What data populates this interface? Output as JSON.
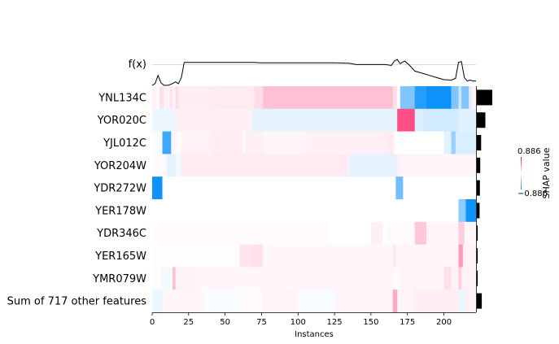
{
  "chart_data": {
    "type": "heatmap",
    "fx_label": "f(x)",
    "xlabel": "Instances",
    "x_range": [
      0,
      222
    ],
    "x_ticks": [
      0,
      25,
      50,
      75,
      100,
      125,
      150,
      175,
      200
    ],
    "x_tick_labels": [
      "0",
      "25",
      "50",
      "75",
      "100",
      "125",
      "150",
      "175",
      "200"
    ],
    "colorbar": {
      "label": "SHAP value",
      "max_label": "0.886",
      "min_label": "−0.886",
      "low_color": "#008bfb",
      "mid_color": "#ffffff",
      "high_color": "#ff0051"
    },
    "features": [
      "YNL134C",
      "YOR020C",
      "YJL012C",
      "YOR204W",
      "YDR272W",
      "YER178W",
      "YDR346C",
      "YER165W",
      "YMR079W",
      "Sum of 717 other features"
    ],
    "importance": [
      1.0,
      0.55,
      0.28,
      0.22,
      0.2,
      0.18,
      0.06,
      0.06,
      0.06,
      0.32
    ],
    "fx": [
      [
        0,
        0.72
      ],
      [
        2,
        0.76
      ],
      [
        4,
        0.95
      ],
      [
        6,
        0.78
      ],
      [
        8,
        0.72
      ],
      [
        11,
        0.72
      ],
      [
        14,
        0.76
      ],
      [
        16,
        0.8
      ],
      [
        18,
        0.76
      ],
      [
        20,
        0.9
      ],
      [
        22,
        1.25
      ],
      [
        30,
        1.25
      ],
      [
        40,
        1.25
      ],
      [
        50,
        1.25
      ],
      [
        60,
        1.25
      ],
      [
        70,
        1.25
      ],
      [
        74,
        1.24
      ],
      [
        80,
        1.24
      ],
      [
        100,
        1.24
      ],
      [
        125,
        1.24
      ],
      [
        135,
        1.23
      ],
      [
        140,
        1.2
      ],
      [
        150,
        1.2
      ],
      [
        160,
        1.2
      ],
      [
        164,
        1.18
      ],
      [
        166,
        1.28
      ],
      [
        168,
        1.32
      ],
      [
        170,
        1.22
      ],
      [
        173,
        1.28
      ],
      [
        176,
        1.2
      ],
      [
        180,
        1.05
      ],
      [
        185,
        1.0
      ],
      [
        190,
        0.95
      ],
      [
        195,
        0.9
      ],
      [
        200,
        0.85
      ],
      [
        205,
        0.84
      ],
      [
        208,
        0.88
      ],
      [
        210,
        1.25
      ],
      [
        212,
        1.27
      ],
      [
        214,
        0.9
      ],
      [
        216,
        0.82
      ],
      [
        218,
        0.84
      ],
      [
        220,
        0.82
      ],
      [
        222,
        0.82
      ]
    ],
    "rows": [
      [
        [
          0,
          3,
          0.05
        ],
        [
          3,
          5,
          -0.02
        ],
        [
          5,
          8,
          0.12
        ],
        [
          8,
          12,
          0.05
        ],
        [
          12,
          14,
          0.1
        ],
        [
          14,
          16,
          0.04
        ],
        [
          16,
          18,
          0.15
        ],
        [
          18,
          40,
          0.07
        ],
        [
          40,
          70,
          0.08
        ],
        [
          70,
          76,
          0.14
        ],
        [
          76,
          165,
          0.25
        ],
        [
          165,
          168,
          0.12
        ],
        [
          168,
          170,
          0
        ],
        [
          170,
          180,
          -0.5
        ],
        [
          180,
          188,
          -0.85
        ],
        [
          188,
          205,
          -0.95
        ],
        [
          205,
          210,
          -0.5
        ],
        [
          210,
          212,
          -0.2
        ],
        [
          212,
          217,
          -0.5
        ],
        [
          217,
          219,
          -0.15
        ],
        [
          219,
          222,
          0.05
        ]
      ],
      [
        [
          0,
          16,
          -0.08
        ],
        [
          16,
          30,
          0.06
        ],
        [
          30,
          68,
          0.06
        ],
        [
          68,
          168,
          -0.1
        ],
        [
          168,
          180,
          0.7
        ],
        [
          180,
          186,
          -0.15
        ],
        [
          186,
          210,
          -0.18
        ],
        [
          210,
          222,
          -0.12
        ]
      ],
      [
        [
          0,
          7,
          -0.02
        ],
        [
          7,
          13,
          -0.75
        ],
        [
          13,
          16,
          0.04
        ],
        [
          16,
          20,
          0.02
        ],
        [
          20,
          40,
          0.05
        ],
        [
          40,
          62,
          0.07
        ],
        [
          62,
          64,
          0.02
        ],
        [
          64,
          76,
          0.06
        ],
        [
          76,
          106,
          0.04
        ],
        [
          106,
          160,
          0.06
        ],
        [
          160,
          166,
          0.08
        ],
        [
          166,
          200,
          0
        ],
        [
          200,
          205,
          -0.12
        ],
        [
          205,
          208,
          -0.4
        ],
        [
          208,
          222,
          -0.15
        ]
      ],
      [
        [
          0,
          10,
          0.02
        ],
        [
          10,
          16,
          -0.1
        ],
        [
          16,
          20,
          -0.05
        ],
        [
          20,
          135,
          0.08
        ],
        [
          135,
          168,
          -0.1
        ],
        [
          168,
          170,
          0.05
        ],
        [
          170,
          222,
          0.04
        ]
      ],
      [
        [
          0,
          7,
          -0.95
        ],
        [
          7,
          167,
          0
        ],
        [
          167,
          172,
          -0.55
        ],
        [
          172,
          222,
          0
        ]
      ],
      [
        [
          0,
          210,
          0
        ],
        [
          210,
          215,
          -0.45
        ],
        [
          215,
          222,
          -0.95
        ]
      ],
      [
        [
          0,
          120,
          0.02
        ],
        [
          120,
          150,
          0
        ],
        [
          150,
          158,
          0.06
        ],
        [
          158,
          160,
          0
        ],
        [
          160,
          180,
          0.02
        ],
        [
          180,
          188,
          0.22
        ],
        [
          188,
          210,
          0.04
        ],
        [
          210,
          214,
          0.2
        ],
        [
          214,
          222,
          0.03
        ]
      ],
      [
        [
          0,
          60,
          0.01
        ],
        [
          60,
          68,
          0.1
        ],
        [
          68,
          76,
          0.12
        ],
        [
          76,
          165,
          0.03
        ],
        [
          165,
          167,
          0.1
        ],
        [
          167,
          210,
          0.04
        ],
        [
          210,
          213,
          0.4
        ],
        [
          213,
          222,
          0.05
        ]
      ],
      [
        [
          0,
          6,
          0.02
        ],
        [
          6,
          14,
          -0.05
        ],
        [
          14,
          16,
          0.25
        ],
        [
          16,
          30,
          0.05
        ],
        [
          30,
          100,
          0.03
        ],
        [
          100,
          165,
          0.04
        ],
        [
          165,
          170,
          0.02
        ],
        [
          170,
          200,
          0.04
        ],
        [
          200,
          205,
          0.12
        ],
        [
          205,
          210,
          0.05
        ],
        [
          210,
          212,
          0.2
        ],
        [
          212,
          222,
          0.05
        ]
      ],
      [
        [
          0,
          7,
          -0.08
        ],
        [
          7,
          20,
          0.03
        ],
        [
          20,
          35,
          0.04
        ],
        [
          35,
          60,
          -0.03
        ],
        [
          60,
          75,
          0.02
        ],
        [
          75,
          100,
          0.04
        ],
        [
          100,
          125,
          -0.03
        ],
        [
          125,
          165,
          0.04
        ],
        [
          165,
          168,
          0.35
        ],
        [
          168,
          180,
          0.04
        ],
        [
          180,
          210,
          0.07
        ],
        [
          210,
          215,
          -0.08
        ],
        [
          215,
          218,
          0.06
        ],
        [
          218,
          222,
          0.05
        ]
      ]
    ]
  }
}
